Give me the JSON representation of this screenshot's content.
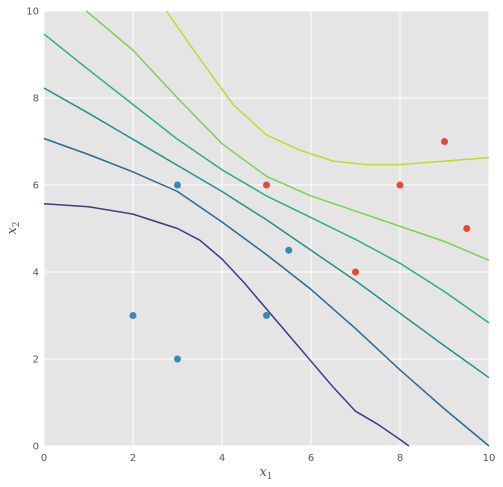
{
  "chart_data": {
    "type": "scatter",
    "title": "",
    "xlabel": "x",
    "xlabel_sub": "1",
    "ylabel": "x",
    "ylabel_sub": "2",
    "xlim": [
      0,
      10
    ],
    "ylim": [
      0,
      10
    ],
    "xticks": [
      0,
      2,
      4,
      6,
      8,
      10
    ],
    "yticks": [
      0,
      2,
      4,
      6,
      8,
      10
    ],
    "grid": true,
    "style": "ggplot",
    "series": [
      {
        "color": "#348abd",
        "points": [
          [
            2,
            3
          ],
          [
            3,
            2
          ],
          [
            3,
            6
          ],
          [
            5,
            3
          ],
          [
            5.5,
            4.5
          ]
        ]
      },
      {
        "color": "#e24a33",
        "points": [
          [
            5,
            6
          ],
          [
            7,
            4
          ],
          [
            8,
            6
          ],
          [
            9,
            7
          ],
          [
            9.5,
            5
          ]
        ]
      }
    ],
    "contours": [
      {
        "color": "#3e3a82",
        "points": [
          [
            0,
            5.57
          ],
          [
            1,
            5.5
          ],
          [
            2,
            5.33
          ],
          [
            3,
            5.0
          ],
          [
            3.5,
            4.73
          ],
          [
            4,
            4.3
          ],
          [
            4.5,
            3.75
          ],
          [
            5,
            3.15
          ],
          [
            5.5,
            2.55
          ],
          [
            6,
            1.95
          ],
          [
            6.5,
            1.35
          ],
          [
            7,
            0.8
          ],
          [
            7.5,
            0.5
          ],
          [
            8,
            0.15
          ],
          [
            8.2,
            0.0
          ]
        ]
      },
      {
        "color": "#2e6a8f",
        "points": [
          [
            0,
            7.07
          ],
          [
            1,
            6.7
          ],
          [
            2,
            6.3
          ],
          [
            3,
            5.85
          ],
          [
            4,
            5.15
          ],
          [
            5,
            4.4
          ],
          [
            6,
            3.6
          ],
          [
            7,
            2.7
          ],
          [
            8,
            1.75
          ],
          [
            9,
            0.85
          ],
          [
            10,
            0.0
          ]
        ]
      },
      {
        "color": "#218f8c",
        "points": [
          [
            0,
            8.23
          ],
          [
            1,
            7.65
          ],
          [
            2,
            7.05
          ],
          [
            3,
            6.45
          ],
          [
            4,
            5.85
          ],
          [
            5,
            5.2
          ],
          [
            6,
            4.5
          ],
          [
            7,
            3.8
          ],
          [
            8,
            3.05
          ],
          [
            9,
            2.3
          ],
          [
            10,
            1.57
          ]
        ]
      },
      {
        "color": "#2cb07a",
        "points": [
          [
            0,
            9.47
          ],
          [
            1,
            8.65
          ],
          [
            2,
            7.85
          ],
          [
            3,
            7.05
          ],
          [
            4,
            6.35
          ],
          [
            5,
            5.75
          ],
          [
            6,
            5.25
          ],
          [
            7,
            4.75
          ],
          [
            8,
            4.2
          ],
          [
            9,
            3.55
          ],
          [
            10,
            2.83
          ]
        ]
      },
      {
        "color": "#7ad14f",
        "points": [
          [
            0.95,
            10
          ],
          [
            2,
            9.1
          ],
          [
            3,
            8.0
          ],
          [
            4,
            6.95
          ],
          [
            5,
            6.2
          ],
          [
            6,
            5.75
          ],
          [
            7,
            5.4
          ],
          [
            8,
            5.05
          ],
          [
            9,
            4.7
          ],
          [
            10,
            4.27
          ]
        ]
      },
      {
        "color": "#c3d827",
        "points": [
          [
            2.75,
            10
          ],
          [
            3.5,
            8.9
          ],
          [
            4.25,
            7.85
          ],
          [
            5,
            7.15
          ],
          [
            5.75,
            6.8
          ],
          [
            6.5,
            6.55
          ],
          [
            7.25,
            6.47
          ],
          [
            8,
            6.47
          ],
          [
            9,
            6.55
          ],
          [
            10,
            6.63
          ]
        ]
      }
    ]
  }
}
